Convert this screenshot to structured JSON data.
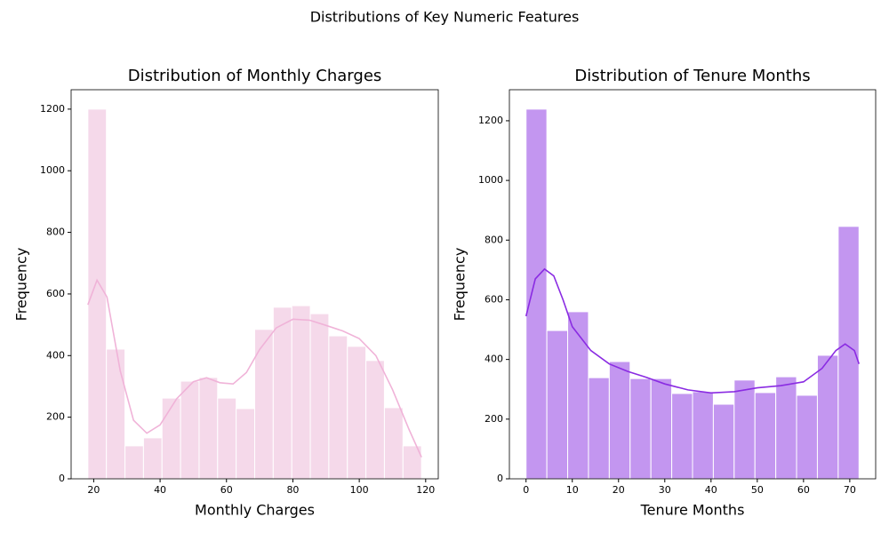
{
  "title": "Distributions of Key Numeric Features",
  "chart_data": [
    {
      "type": "histogram",
      "title": "Distribution of Monthly Charges",
      "x_label": "Monthly Charges",
      "y_label": "Frequency",
      "bins": [
        18.25,
        23.83,
        29.42,
        35.0,
        40.58,
        46.17,
        51.75,
        57.33,
        62.92,
        68.5,
        74.08,
        79.67,
        85.25,
        90.83,
        96.42,
        102.0,
        107.58,
        113.17,
        118.75
      ],
      "values": [
        1200,
        421,
        107,
        133,
        262,
        317,
        329,
        262,
        228,
        485,
        557,
        562,
        536,
        464,
        430,
        384,
        231,
        107
      ],
      "color": "#f5d9ea",
      "kde": {
        "color": "#f0b3d8",
        "x": [
          18.25,
          21,
          24,
          28,
          32,
          36,
          40,
          45,
          50,
          54,
          58,
          62,
          66,
          70,
          75,
          80,
          85,
          90,
          95,
          100,
          105,
          110,
          115,
          118.75
        ],
        "values": [
          565,
          645,
          590,
          350,
          190,
          148,
          175,
          260,
          315,
          328,
          312,
          308,
          345,
          420,
          490,
          518,
          515,
          498,
          480,
          455,
          400,
          290,
          160,
          70
        ]
      },
      "xlim": [
        13.2,
        123.8
      ],
      "ylim": [
        0,
        1263
      ],
      "xticks": [
        20,
        40,
        60,
        80,
        100,
        120
      ],
      "yticks": [
        0,
        200,
        400,
        600,
        800,
        1000,
        1200
      ]
    },
    {
      "type": "histogram",
      "title": "Distribution of Tenure Months",
      "x_label": "Tenure Months",
      "y_label": "Frequency",
      "bins": [
        0,
        4.5,
        9,
        13.5,
        18,
        22.5,
        27,
        31.5,
        36,
        40.5,
        45,
        49.5,
        54,
        58.5,
        63,
        67.5,
        72
      ],
      "values": [
        1239,
        497,
        560,
        339,
        393,
        336,
        336,
        286,
        292,
        250,
        331,
        289,
        342,
        280,
        414,
        846
      ],
      "color": "#c396f0",
      "kde": {
        "color": "#8a2be2",
        "x": [
          0,
          2,
          4,
          6,
          8,
          10,
          14,
          18,
          22,
          26,
          30,
          35,
          40,
          45,
          50,
          55,
          60,
          64,
          67,
          69,
          71,
          72
        ],
        "values": [
          545,
          670,
          703,
          680,
          600,
          510,
          430,
          385,
          360,
          340,
          318,
          298,
          288,
          292,
          305,
          312,
          325,
          370,
          430,
          452,
          430,
          385
        ]
      },
      "xlim": [
        -3.6,
        75.6
      ],
      "ylim": [
        0,
        1304
      ],
      "xticks": [
        0,
        10,
        20,
        30,
        40,
        50,
        60,
        70
      ],
      "yticks": [
        0,
        200,
        400,
        600,
        800,
        1000,
        1200
      ]
    }
  ]
}
